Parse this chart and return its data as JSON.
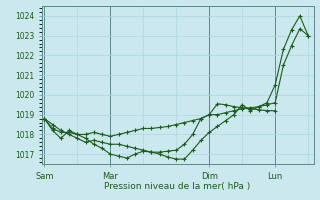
{
  "title": "",
  "xlabel": "Pression niveau de la mer( hPa )",
  "ylabel": "",
  "bg_color": "#cce8ef",
  "grid_color": "#b0d8e0",
  "line_color": "#1a5c1a",
  "ylim": [
    1016.5,
    1024.5
  ],
  "yticks": [
    1017,
    1018,
    1019,
    1020,
    1021,
    1022,
    1023,
    1024
  ],
  "x_tick_labels": [
    "Sam",
    "Mar",
    "Dim",
    "Lun"
  ],
  "x_tick_positions": [
    0,
    48,
    120,
    168
  ],
  "vline_color": "#5a8a8a",
  "series1_x": [
    0,
    6,
    12,
    18,
    24,
    30,
    36,
    42,
    48,
    54,
    60,
    66,
    72,
    78,
    84,
    90,
    96,
    102,
    108,
    114,
    120,
    126,
    132,
    138,
    144,
    150,
    156,
    162,
    168,
    174,
    180,
    186,
    192
  ],
  "series1_y": [
    1018.8,
    1018.5,
    1018.2,
    1018.0,
    1017.8,
    1017.6,
    1017.7,
    1017.6,
    1017.5,
    1017.5,
    1017.4,
    1017.3,
    1017.2,
    1017.1,
    1017.0,
    1016.85,
    1016.75,
    1016.75,
    1017.2,
    1017.7,
    1018.1,
    1018.4,
    1018.7,
    1019.0,
    1019.5,
    1019.2,
    1019.4,
    1019.6,
    1020.5,
    1022.3,
    1023.3,
    1024.0,
    1023.0
  ],
  "series2_x": [
    0,
    6,
    12,
    18,
    24,
    30,
    36,
    42,
    48,
    54,
    60,
    66,
    72,
    78,
    84,
    90,
    96,
    102,
    108,
    114,
    120,
    126,
    132,
    138,
    144,
    150,
    156,
    162,
    168,
    174,
    180,
    186,
    192
  ],
  "series2_y": [
    1018.8,
    1018.3,
    1018.1,
    1018.1,
    1018.0,
    1018.0,
    1018.1,
    1018.0,
    1017.9,
    1018.0,
    1018.1,
    1018.2,
    1018.3,
    1018.3,
    1018.35,
    1018.4,
    1018.5,
    1018.6,
    1018.7,
    1018.8,
    1019.0,
    1019.0,
    1019.1,
    1019.2,
    1019.3,
    1019.35,
    1019.4,
    1019.5,
    1019.6,
    1021.5,
    1022.5,
    1023.35,
    1023.0
  ],
  "series3_x": [
    0,
    6,
    12,
    18,
    24,
    30,
    36,
    42,
    48,
    54,
    60,
    66,
    72,
    78,
    84,
    90,
    96,
    102,
    108,
    114,
    120,
    126,
    132,
    138,
    144,
    150,
    156,
    162,
    168
  ],
  "series3_y": [
    1018.8,
    1018.2,
    1017.8,
    1018.2,
    1018.0,
    1017.8,
    1017.5,
    1017.3,
    1017.0,
    1016.9,
    1016.8,
    1017.0,
    1017.15,
    1017.1,
    1017.1,
    1017.15,
    1017.2,
    1017.5,
    1018.0,
    1018.8,
    1019.0,
    1019.55,
    1019.5,
    1019.4,
    1019.35,
    1019.3,
    1019.25,
    1019.2,
    1019.2
  ],
  "xlim": [
    -2,
    196
  ]
}
